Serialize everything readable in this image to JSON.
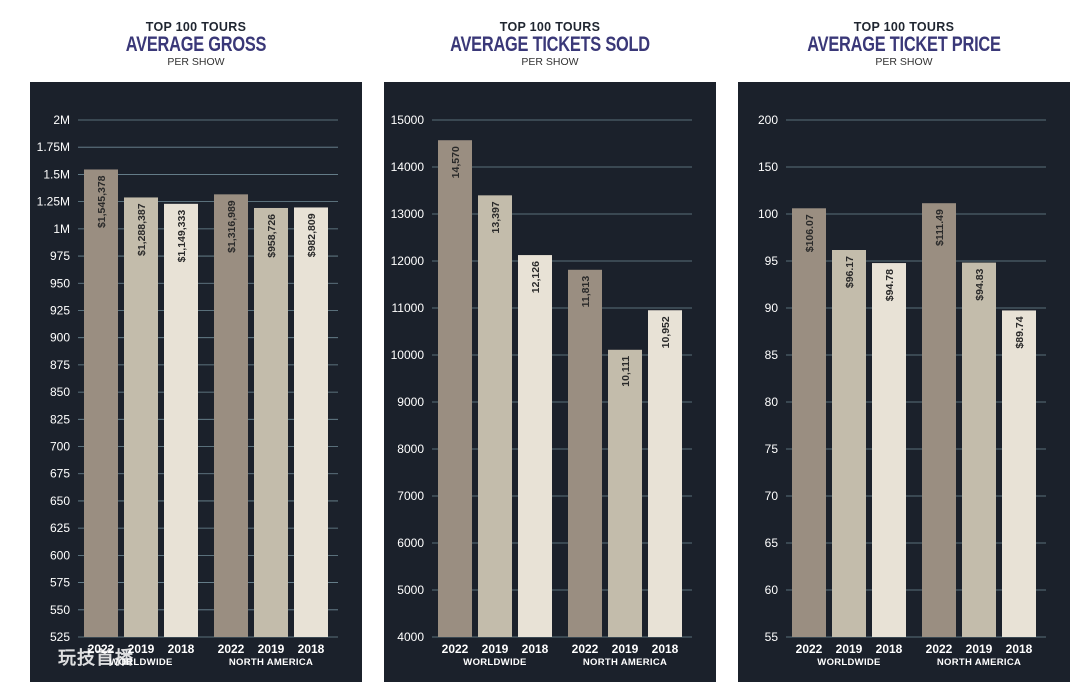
{
  "colors": {
    "panel": "#1b212b",
    "bar_2022": "#9a8e81",
    "bar_2019": "#c3bcab",
    "bar_2018": "#e8e2d6",
    "title": "#3a3878",
    "grid": "#6f8a96"
  },
  "watermark": "玩技首播",
  "chart_data": [
    {
      "type": "bar",
      "overtitle": "TOP 100 TOURS",
      "title": "AVERAGE GROSS",
      "subtitle": "PER SHOW",
      "yticks": [
        525,
        550,
        575,
        600,
        625,
        650,
        675,
        700,
        825,
        850,
        875,
        900,
        925,
        950,
        975,
        1000,
        1250000,
        1500000,
        1750000,
        2000000
      ],
      "yticklabels": [
        "525",
        "550",
        "575",
        "600",
        "625",
        "650",
        "675",
        "700",
        "825",
        "850",
        "875",
        "900",
        "925",
        "950",
        "975",
        "1M",
        "1.25M",
        "1.5M",
        "1.75M",
        "2M"
      ],
      "groups": [
        {
          "name": "WORLDWIDE",
          "categories": [
            "2022",
            "2019",
            "2018"
          ],
          "values": [
            1545378,
            1288387,
            1149333
          ],
          "labels": [
            "$1,545,378",
            "$1,288,387",
            "$1,149,333"
          ]
        },
        {
          "name": "NORTH AMERICA",
          "categories": [
            "2022",
            "2019",
            "2018"
          ],
          "values": [
            1316989,
            958726,
            982809
          ],
          "labels": [
            "$1,316,989",
            "$958,726",
            "$982,809"
          ]
        }
      ]
    },
    {
      "type": "bar",
      "overtitle": "TOP 100 TOURS",
      "title": "AVERAGE TICKETS SOLD",
      "subtitle": "PER SHOW",
      "yticks": [
        4000,
        5000,
        6000,
        7000,
        8000,
        9000,
        10000,
        11000,
        12000,
        13000,
        14000,
        15000
      ],
      "yticklabels": [
        "4000",
        "5000",
        "6000",
        "7000",
        "8000",
        "9000",
        "10000",
        "11000",
        "12000",
        "13000",
        "14000",
        "15000"
      ],
      "groups": [
        {
          "name": "WORLDWIDE",
          "categories": [
            "2022",
            "2019",
            "2018"
          ],
          "values": [
            14570,
            13397,
            12126
          ],
          "labels": [
            "14,570",
            "13,397",
            "12,126"
          ]
        },
        {
          "name": "NORTH AMERICA",
          "categories": [
            "2022",
            "2019",
            "2018"
          ],
          "values": [
            11813,
            10111,
            10952
          ],
          "labels": [
            "11,813",
            "10,111",
            "10,952"
          ]
        }
      ]
    },
    {
      "type": "bar",
      "overtitle": "TOP 100 TOURS",
      "title": "AVERAGE TICKET PRICE",
      "subtitle": "PER SHOW",
      "yticks": [
        55,
        60,
        65,
        70,
        75,
        80,
        85,
        90,
        95,
        100,
        150,
        200
      ],
      "yticklabels": [
        "55",
        "60",
        "65",
        "70",
        "75",
        "80",
        "85",
        "90",
        "95",
        "100",
        "150",
        "200"
      ],
      "groups": [
        {
          "name": "WORLDWIDE",
          "categories": [
            "2022",
            "2019",
            "2018"
          ],
          "values": [
            106.07,
            96.17,
            94.78
          ],
          "labels": [
            "$106.07",
            "$96.17",
            "$94.78"
          ]
        },
        {
          "name": "NORTH AMERICA",
          "categories": [
            "2022",
            "2019",
            "2018"
          ],
          "values": [
            111.49,
            94.83,
            89.74
          ],
          "labels": [
            "$111.49",
            "$94.83",
            "$89.74"
          ]
        }
      ]
    }
  ]
}
